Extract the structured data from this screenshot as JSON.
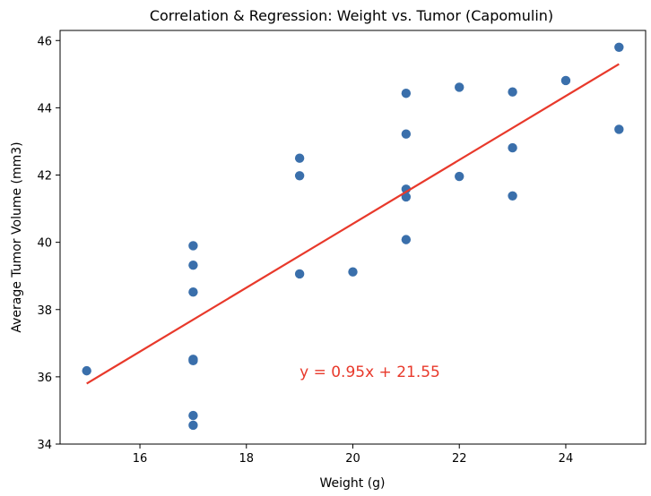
{
  "chart_data": {
    "type": "scatter",
    "title": "Correlation & Regression: Weight vs. Tumor (Capomulin)",
    "xlabel": "Weight (g)",
    "ylabel": "Average Tumor Volume (mm3)",
    "xlim": [
      14.5,
      25.5
    ],
    "ylim": [
      34,
      46.3
    ],
    "xticks": [
      16,
      18,
      20,
      22,
      24
    ],
    "yticks": [
      34,
      36,
      38,
      40,
      42,
      44,
      46
    ],
    "grid": false,
    "legend": null,
    "colors": {
      "points": "#3a6fab",
      "regression": "#e8392b"
    },
    "series": [
      {
        "values": [
          {
            "x": 15,
            "y": 36.18
          },
          {
            "x": 17,
            "y": 39.9
          },
          {
            "x": 17,
            "y": 39.32
          },
          {
            "x": 17,
            "y": 38.52
          },
          {
            "x": 17,
            "y": 36.52
          },
          {
            "x": 17,
            "y": 36.48
          },
          {
            "x": 17,
            "y": 34.85
          },
          {
            "x": 17,
            "y": 34.56
          },
          {
            "x": 19,
            "y": 42.5
          },
          {
            "x": 19,
            "y": 41.98
          },
          {
            "x": 19,
            "y": 39.06
          },
          {
            "x": 20,
            "y": 39.12
          },
          {
            "x": 21,
            "y": 44.43
          },
          {
            "x": 21,
            "y": 43.22
          },
          {
            "x": 21,
            "y": 41.58
          },
          {
            "x": 21,
            "y": 41.35
          },
          {
            "x": 21,
            "y": 40.08
          },
          {
            "x": 22,
            "y": 44.61
          },
          {
            "x": 22,
            "y": 41.96
          },
          {
            "x": 23,
            "y": 44.47
          },
          {
            "x": 23,
            "y": 42.81
          },
          {
            "x": 23,
            "y": 41.38
          },
          {
            "x": 24,
            "y": 44.81
          },
          {
            "x": 25,
            "y": 45.8
          },
          {
            "x": 25,
            "y": 43.36
          }
        ]
      }
    ],
    "regression": {
      "slope": 0.95,
      "intercept": 21.55,
      "x_range": [
        15,
        25
      ]
    },
    "annotation": {
      "text": "y = 0.95x + 21.55",
      "x": 19,
      "y": 36.0
    }
  }
}
